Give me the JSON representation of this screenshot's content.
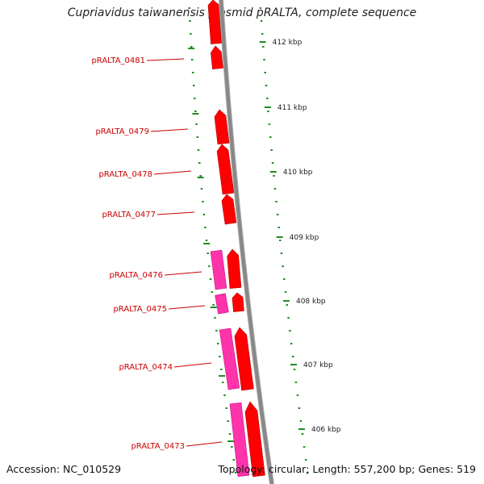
{
  "title": "Cupriavidus taiwanensis plasmid pRALTA, complete sequence",
  "footer": {
    "accession": "Accession: NC_010529",
    "topology": "Topology: circular; Length: 557,200 bp; Genes: 519"
  },
  "colors": {
    "backbone": "#888888",
    "gene_forward": "#ff0000",
    "gene_cds": "#ff33aa",
    "tick": "#228b22",
    "gene_label": "#cc0000",
    "scale_label": "#222222"
  },
  "scale": {
    "unit": "kbp",
    "labels": [
      "412 kbp",
      "411 kbp",
      "410 kbp",
      "409 kbp",
      "408 kbp",
      "407 kbp",
      "406 kbp"
    ]
  },
  "genes": [
    {
      "label": "pRALTA_0481"
    },
    {
      "label": "pRALTA_0479"
    },
    {
      "label": "pRALTA_0478"
    },
    {
      "label": "pRALTA_0477"
    },
    {
      "label": "pRALTA_0476"
    },
    {
      "label": "pRALTA_0475"
    },
    {
      "label": "pRALTA_0474"
    },
    {
      "label": "pRALTA_0473"
    }
  ]
}
